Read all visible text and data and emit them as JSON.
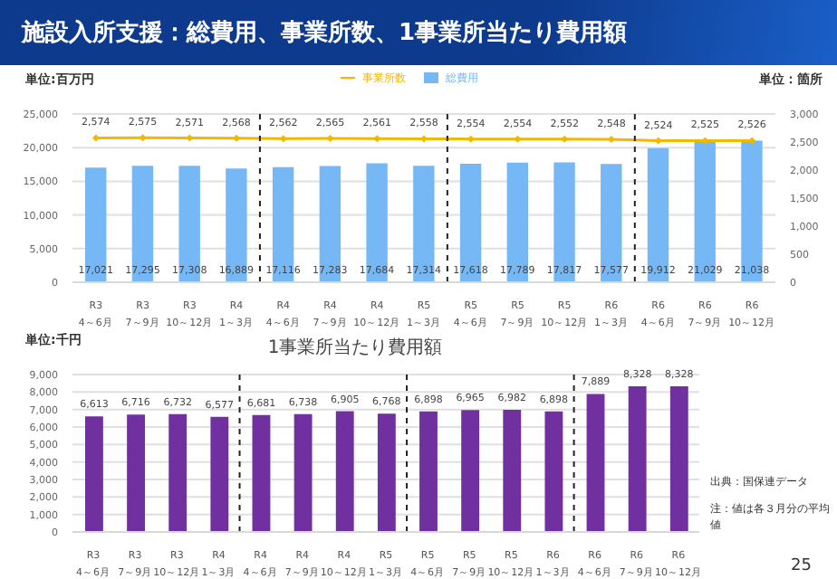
{
  "chart_data": [
    {
      "type": "bar",
      "title": "施設入所支援：総費用、事業所数、1事業所当たり費用額",
      "ylabel": "単位:百万円",
      "y2label": "単位：箇所",
      "categories": [
        "R3\n4～6月",
        "R3\n7～9月",
        "R3\n10～12月",
        "R4\n1～3月",
        "R4\n4～6月",
        "R4\n7～9月",
        "R4\n10～12月",
        "R5\n1～3月",
        "R5\n4～6月",
        "R5\n7～9月",
        "R5\n10～12月",
        "R6\n1～3月",
        "R6\n4～6月",
        "R6\n7～9月",
        "R6\n10～12月"
      ],
      "series": [
        {
          "name": "総費用",
          "color": "#75b8f5",
          "values": [
            17021,
            17295,
            17308,
            16889,
            17116,
            17283,
            17684,
            17314,
            17618,
            17789,
            17817,
            17577,
            19912,
            21029,
            21038
          ],
          "value_labels": [
            "17,021",
            "17,295",
            "17,308",
            "16,889",
            "17,116",
            "17,283",
            "17,684",
            "17,314",
            "17,618",
            "17,789",
            "17,817",
            "17,577",
            "19,912",
            "21,029",
            "21,038"
          ]
        },
        {
          "name": "事業所数",
          "type": "line",
          "axis": "y2",
          "color": "#f2b800",
          "values": [
            2574,
            2575,
            2571,
            2568,
            2562,
            2565,
            2561,
            2558,
            2554,
            2554,
            2552,
            2548,
            2524,
            2525,
            2526
          ],
          "value_labels": [
            "2,574",
            "2,575",
            "2,571",
            "2,568",
            "2,562",
            "2,565",
            "2,561",
            "2,558",
            "2,554",
            "2,554",
            "2,552",
            "2,548",
            "2,524",
            "2,525",
            "2,526"
          ]
        }
      ],
      "ylim": [
        0,
        25000
      ],
      "yticks": [
        0,
        {
          "value": 5000,
          "label": "5,000"
        },
        {
          "value": 10000,
          "label": "10,000"
        },
        {
          "value": 15000,
          "label": "15,000"
        },
        {
          "value": 20000,
          "label": "20,000"
        },
        {
          "value": 25000,
          "label": "25,000"
        }
      ],
      "y2lim": [
        0,
        3000
      ],
      "y2ticks": [
        0,
        500,
        {
          "value": 1000,
          "label": "1,000"
        },
        {
          "value": 1500,
          "label": "1,500"
        },
        {
          "value": 2000,
          "label": "2,000"
        },
        {
          "value": 2500,
          "label": "2,500"
        },
        {
          "value": 3000,
          "label": "3,000"
        }
      ],
      "grid": "y",
      "legend": "top",
      "marker": "diamond"
    },
    {
      "type": "bar",
      "title": "1事業所当たり費用額",
      "ylabel": "単位:千円",
      "categories": [
        "R3\n4～6月",
        "R3\n7～9月",
        "R3\n10～12月",
        "R4\n1～3月",
        "R4\n4～6月",
        "R4\n7～9月",
        "R4\n10～12月",
        "R5\n1～3月",
        "R5\n4～6月",
        "R5\n7～9月",
        "R5\n10～12月",
        "R6\n1～3月",
        "R6\n4～6月",
        "R6\n7～9月",
        "R6\n10～12月"
      ],
      "series": [
        {
          "color": "#7030a0",
          "values": [
            6613,
            6716,
            6732,
            6577,
            6681,
            6738,
            6905,
            6768,
            6898,
            6965,
            6982,
            6898,
            7889,
            8328,
            8328
          ],
          "value_labels": [
            "6,613",
            "6,716",
            "6,732",
            "6,577",
            "6,681",
            "6,738",
            "6,905",
            "6,768",
            "6,898",
            "6,965",
            "6,982",
            "6,898",
            "7,889",
            "8,328",
            "8,328"
          ]
        }
      ],
      "ylim": [
        0,
        9000
      ],
      "yticks": [
        0,
        {
          "value": 1000,
          "label": "1,000"
        },
        {
          "value": 2000,
          "label": "2,000"
        },
        {
          "value": 3000,
          "label": "3,000"
        },
        {
          "value": 4000,
          "label": "4,000"
        },
        {
          "value": 5000,
          "label": "5,000"
        },
        {
          "value": 6000,
          "label": "6,000"
        },
        {
          "value": 7000,
          "label": "7,000"
        },
        {
          "value": 8000,
          "label": "8,000"
        },
        {
          "value": 9000,
          "label": "9,000"
        }
      ],
      "grid": "y",
      "legend": false,
      "annotations": [
        "出典：国保連データ",
        "注：値は各３月分の平均値",
        "25"
      ]
    }
  ]
}
